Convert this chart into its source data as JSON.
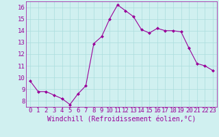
{
  "x": [
    0,
    1,
    2,
    3,
    4,
    5,
    6,
    7,
    8,
    9,
    10,
    11,
    12,
    13,
    14,
    15,
    16,
    17,
    18,
    19,
    20,
    21,
    22,
    23
  ],
  "y": [
    9.7,
    8.8,
    8.8,
    8.5,
    8.2,
    7.7,
    8.6,
    9.3,
    12.9,
    13.5,
    15.0,
    16.2,
    15.7,
    15.2,
    14.1,
    13.8,
    14.2,
    14.0,
    14.0,
    13.9,
    12.5,
    11.2,
    11.0,
    10.6
  ],
  "line_color": "#990099",
  "marker": "D",
  "marker_size": 2,
  "bg_color": "#d0f0f0",
  "grid_color": "#aadddd",
  "xlabel": "Windchill (Refroidissement éolien,°C)",
  "xlabel_fontsize": 7,
  "tick_fontsize": 6.5,
  "ylim": [
    7.5,
    16.5
  ],
  "xlim": [
    -0.5,
    23.5
  ],
  "yticks": [
    8,
    9,
    10,
    11,
    12,
    13,
    14,
    15,
    16
  ],
  "xticks": [
    0,
    1,
    2,
    3,
    4,
    5,
    6,
    7,
    8,
    9,
    10,
    11,
    12,
    13,
    14,
    15,
    16,
    17,
    18,
    19,
    20,
    21,
    22,
    23
  ]
}
